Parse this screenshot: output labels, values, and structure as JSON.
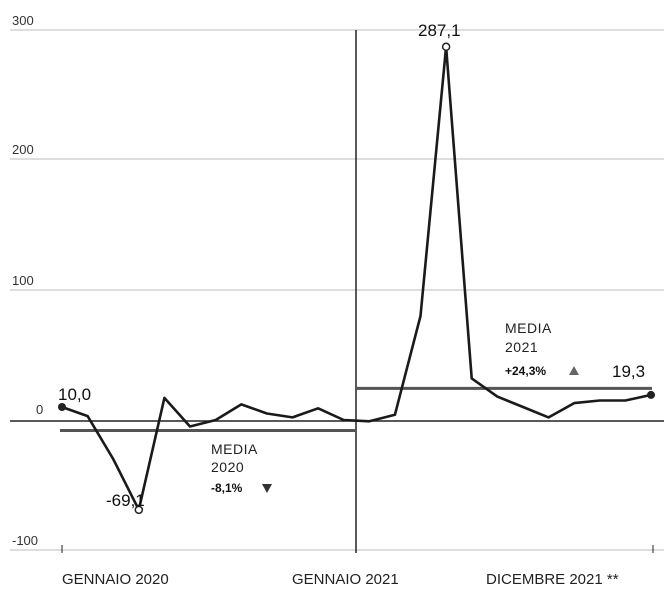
{
  "chart_data": {
    "type": "line",
    "title": "",
    "xlabel": "",
    "ylabel": "",
    "ylim": [
      -100,
      300
    ],
    "y_ticks": [
      "300",
      "200",
      "100",
      "0",
      "-100"
    ],
    "grid": true,
    "x_tick_labels": [
      "GENNAIO 2020",
      "GENNAIO 2021",
      "DICEMBRE 2021 **"
    ],
    "series": [
      {
        "values": [
          10.0,
          3,
          -30,
          -69.1,
          17,
          -5,
          0,
          12,
          5,
          2,
          9,
          0,
          -1,
          4,
          80,
          287.1,
          32,
          18,
          10,
          2,
          13,
          15,
          15,
          19.3
        ]
      }
    ],
    "averages": [
      {
        "label": "MEDIA",
        "year": "2020",
        "change": "-8,1%",
        "direction": "down",
        "value": -8.1
      },
      {
        "label": "MEDIA",
        "year": "2021",
        "change": "+24,3%",
        "direction": "up",
        "value": 24.3
      }
    ],
    "point_labels": {
      "first": "10,0",
      "min": "-69,1",
      "max": "287,1",
      "last": "19,3"
    }
  }
}
